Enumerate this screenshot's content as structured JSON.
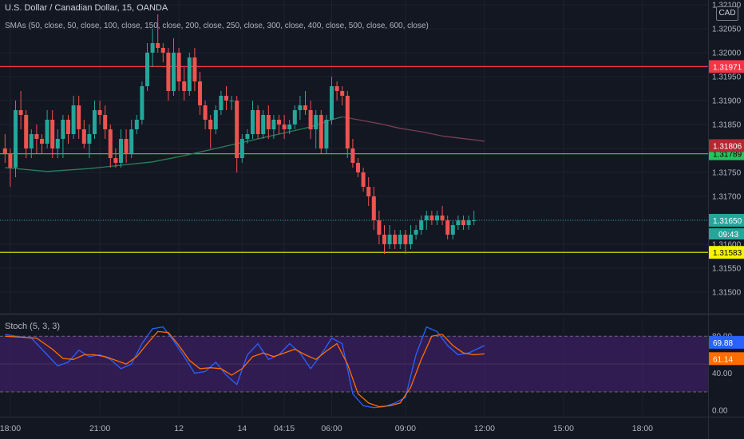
{
  "header": {
    "title": "U.S. Dollar / Canadian Dollar, 15, OANDA",
    "sma_label": "SMAs (50, close, 50, close, 100, close, 150, close, 200, close, 250, close, 300, close, 400, close, 500, close, 600, close)",
    "stoch_label": "Stoch (5, 3, 3)",
    "currency": "CAD"
  },
  "colors": {
    "background": "#131722",
    "grid": "#1e2230",
    "up": "#26a69a",
    "down": "#ef5350",
    "text": "#b2b5be",
    "sma_green": "#2e7d5a",
    "sma_maroon": "#7a3f52",
    "hline_red": "#f23645",
    "hline_green": "#22c55e",
    "hline_yellow": "#f5f500",
    "last_price_line": "#26a69a",
    "stoch_k": "#2962ff",
    "stoch_d": "#ff6d00",
    "stoch_band": "#4a2078"
  },
  "chart_data": [
    {
      "type": "candlestick",
      "title": "U.S. Dollar / Canadian Dollar, 15, OANDA",
      "ylim": [
        1.3146,
        1.3211
      ],
      "y_ticks": [
        "1.32100",
        "1.32050",
        "1.32000",
        "1.31950",
        "1.31900",
        "1.31850",
        "1.31800",
        "1.31750",
        "1.31700",
        "1.31650",
        "1.31600",
        "1.31550",
        "1.31500"
      ],
      "x_ticks": [
        "18:00",
        "21:00",
        "12",
        "14",
        "04:15",
        "06:00",
        "09:00",
        "12:00",
        "15:00",
        "18:00"
      ],
      "x_tick_index": [
        1,
        18,
        33,
        45,
        53,
        62,
        76,
        91,
        106,
        121
      ],
      "bars_in_view": 133,
      "candles": [
        [
          1.318,
          1.3183,
          1.3177,
          1.3179
        ],
        [
          1.3179,
          1.318,
          1.3172,
          1.3176
        ],
        [
          1.3176,
          1.319,
          1.3174,
          1.3188
        ],
        [
          1.3188,
          1.3192,
          1.3184,
          1.3187
        ],
        [
          1.3187,
          1.3188,
          1.3178,
          1.318
        ],
        [
          1.318,
          1.3184,
          1.3178,
          1.3183
        ],
        [
          1.3183,
          1.3185,
          1.3179,
          1.3182
        ],
        [
          1.3182,
          1.3183,
          1.3179,
          1.3181
        ],
        [
          1.3181,
          1.3188,
          1.318,
          1.3186
        ],
        [
          1.3186,
          1.3188,
          1.3178,
          1.318
        ],
        [
          1.318,
          1.3184,
          1.3178,
          1.3182
        ],
        [
          1.3182,
          1.3187,
          1.3178,
          1.3186
        ],
        [
          1.3186,
          1.3187,
          1.3181,
          1.3183
        ],
        [
          1.3183,
          1.3191,
          1.3182,
          1.3189
        ],
        [
          1.3189,
          1.3191,
          1.3182,
          1.3184
        ],
        [
          1.3184,
          1.3186,
          1.318,
          1.3181
        ],
        [
          1.3181,
          1.3185,
          1.3178,
          1.3183
        ],
        [
          1.3183,
          1.319,
          1.3182,
          1.3188
        ],
        [
          1.3188,
          1.319,
          1.3185,
          1.3187
        ],
        [
          1.3187,
          1.3189,
          1.3182,
          1.3184
        ],
        [
          1.3184,
          1.3185,
          1.3176,
          1.3178
        ],
        [
          1.3178,
          1.318,
          1.3176,
          1.3177
        ],
        [
          1.3177,
          1.3184,
          1.3176,
          1.3182
        ],
        [
          1.3182,
          1.3184,
          1.3177,
          1.3179
        ],
        [
          1.3179,
          1.3186,
          1.3178,
          1.3184
        ],
        [
          1.3184,
          1.3187,
          1.3183,
          1.3186
        ],
        [
          1.3186,
          1.3194,
          1.3185,
          1.3193
        ],
        [
          1.3193,
          1.3202,
          1.3192,
          1.32
        ],
        [
          1.32,
          1.3205,
          1.3197,
          1.3202
        ],
        [
          1.3202,
          1.3208,
          1.32,
          1.3201
        ],
        [
          1.3201,
          1.3202,
          1.3198,
          1.32
        ],
        [
          1.32,
          1.3201,
          1.319,
          1.3192
        ],
        [
          1.3192,
          1.3203,
          1.3191,
          1.32
        ],
        [
          1.32,
          1.3201,
          1.3192,
          1.3194
        ],
        [
          1.3194,
          1.3197,
          1.319,
          1.3192
        ],
        [
          1.3192,
          1.32,
          1.3191,
          1.3199
        ],
        [
          1.3199,
          1.3201,
          1.3192,
          1.3194
        ],
        [
          1.3194,
          1.3196,
          1.3187,
          1.3189
        ],
        [
          1.3189,
          1.319,
          1.3184,
          1.3186
        ],
        [
          1.3186,
          1.3187,
          1.318,
          1.3184
        ],
        [
          1.3184,
          1.3189,
          1.3183,
          1.3188
        ],
        [
          1.3188,
          1.3192,
          1.3187,
          1.3191
        ],
        [
          1.3191,
          1.3193,
          1.3188,
          1.319
        ],
        [
          1.319,
          1.3191,
          1.3188,
          1.319
        ],
        [
          1.319,
          1.3191,
          1.3175,
          1.3178
        ],
        [
          1.3178,
          1.3183,
          1.3177,
          1.3182
        ],
        [
          1.3182,
          1.3184,
          1.3181,
          1.3183
        ],
        [
          1.3183,
          1.319,
          1.3182,
          1.3188
        ],
        [
          1.3188,
          1.3189,
          1.3182,
          1.3183
        ],
        [
          1.3183,
          1.3188,
          1.3182,
          1.3187
        ],
        [
          1.3187,
          1.3189,
          1.3182,
          1.3184
        ],
        [
          1.3184,
          1.3187,
          1.3182,
          1.3186
        ],
        [
          1.3186,
          1.3187,
          1.3183,
          1.3185
        ],
        [
          1.3185,
          1.3187,
          1.3182,
          1.3184
        ],
        [
          1.3184,
          1.3186,
          1.3183,
          1.3185
        ],
        [
          1.3185,
          1.3189,
          1.3184,
          1.3188
        ],
        [
          1.3188,
          1.3191,
          1.3186,
          1.3189
        ],
        [
          1.3189,
          1.3192,
          1.3187,
          1.3188
        ],
        [
          1.3188,
          1.319,
          1.3182,
          1.3184
        ],
        [
          1.3184,
          1.3188,
          1.318,
          1.3187
        ],
        [
          1.3187,
          1.3188,
          1.3179,
          1.318
        ],
        [
          1.318,
          1.3187,
          1.3179,
          1.3186
        ],
        [
          1.3186,
          1.3195,
          1.3185,
          1.3193
        ],
        [
          1.3193,
          1.3194,
          1.319,
          1.3192
        ],
        [
          1.3192,
          1.3193,
          1.3189,
          1.3191
        ],
        [
          1.3191,
          1.3192,
          1.3178,
          1.318
        ],
        [
          1.318,
          1.3182,
          1.3176,
          1.3177
        ],
        [
          1.3177,
          1.3178,
          1.3174,
          1.3175
        ],
        [
          1.3175,
          1.3176,
          1.3171,
          1.3172
        ],
        [
          1.3172,
          1.3174,
          1.3168,
          1.317
        ],
        [
          1.317,
          1.3172,
          1.3163,
          1.3165
        ],
        [
          1.3165,
          1.3167,
          1.316,
          1.3162
        ],
        [
          1.3162,
          1.3164,
          1.3158,
          1.316
        ],
        [
          1.316,
          1.3164,
          1.3159,
          1.3162
        ],
        [
          1.3162,
          1.3163,
          1.3159,
          1.316
        ],
        [
          1.316,
          1.3163,
          1.3159,
          1.3162
        ],
        [
          1.3162,
          1.3163,
          1.3158,
          1.316
        ],
        [
          1.316,
          1.3164,
          1.3159,
          1.3162
        ],
        [
          1.3162,
          1.3164,
          1.3161,
          1.3163
        ],
        [
          1.3163,
          1.3166,
          1.3162,
          1.3165
        ],
        [
          1.3165,
          1.3167,
          1.3163,
          1.3166
        ],
        [
          1.3166,
          1.3167,
          1.3164,
          1.3165
        ],
        [
          1.3165,
          1.3167,
          1.3164,
          1.3166
        ],
        [
          1.3166,
          1.3168,
          1.3164,
          1.3165
        ],
        [
          1.3165,
          1.3166,
          1.3161,
          1.3162
        ],
        [
          1.3162,
          1.3165,
          1.3161,
          1.3164
        ],
        [
          1.3164,
          1.3166,
          1.3163,
          1.3165
        ],
        [
          1.3165,
          1.3166,
          1.3163,
          1.3164
        ],
        [
          1.3164,
          1.3166,
          1.3163,
          1.3165
        ],
        [
          1.3165,
          1.3167,
          1.3164,
          1.3165
        ]
      ],
      "sma_series": [
        {
          "values": [
            [
              0,
              1.3176
            ],
            [
              8,
              1.31752
            ],
            [
              16,
              1.31758
            ],
            [
              22,
              1.31765
            ],
            [
              28,
              1.31772
            ],
            [
              34,
              1.31785
            ],
            [
              40,
              1.318
            ],
            [
              46,
              1.31815
            ],
            [
              52,
              1.3183
            ],
            [
              58,
              1.31845
            ],
            [
              62,
              1.3186
            ],
            [
              64,
              1.31866
            ]
          ]
        },
        {
          "values": [
            [
              64,
              1.31866
            ],
            [
              67,
              1.3186
            ],
            [
              71,
              1.31852
            ],
            [
              75,
              1.31842
            ],
            [
              79,
              1.31835
            ],
            [
              83,
              1.31826
            ],
            [
              86,
              1.31822
            ],
            [
              89,
              1.31818
            ],
            [
              91,
              1.31815
            ]
          ]
        }
      ],
      "horizontal_lines": [
        {
          "value": 1.31971,
          "label": "1.31971",
          "color": "#f23645"
        },
        {
          "value": 1.31789,
          "label": "1.31789",
          "color": "#22c55e"
        },
        {
          "value": 1.31583,
          "label": "1.31583",
          "color": "#f5f500"
        }
      ],
      "markers": [
        {
          "value": 1.31806,
          "label": "1.31806",
          "color": "#ffffff",
          "bg": "#b22833"
        },
        {
          "value": 1.3165,
          "label": "1.31650",
          "color": "#ffffff",
          "bg": "#26a69a",
          "last_price": true,
          "sub_label": "09:43"
        }
      ]
    },
    {
      "type": "line",
      "title": "Stoch (5, 3, 3)",
      "ylim": [
        -5,
        100
      ],
      "y_ticks": [
        "80.00",
        "40.00",
        "0.00"
      ],
      "y_tick_values": [
        80,
        40,
        0
      ],
      "band": [
        20,
        80
      ],
      "bars_in_view": 133,
      "series": [
        {
          "name": "%K",
          "color": "#2962ff",
          "values": [
            [
              0,
              82
            ],
            [
              2,
              80
            ],
            [
              5,
              78
            ],
            [
              8,
              60
            ],
            [
              10,
              48
            ],
            [
              12,
              52
            ],
            [
              14,
              65
            ],
            [
              16,
              58
            ],
            [
              18,
              60
            ],
            [
              20,
              55
            ],
            [
              22,
              45
            ],
            [
              24,
              50
            ],
            [
              26,
              72
            ],
            [
              28,
              88
            ],
            [
              30,
              90
            ],
            [
              32,
              75
            ],
            [
              34,
              58
            ],
            [
              36,
              40
            ],
            [
              38,
              42
            ],
            [
              40,
              52
            ],
            [
              42,
              38
            ],
            [
              44,
              28
            ],
            [
              46,
              60
            ],
            [
              48,
              72
            ],
            [
              50,
              55
            ],
            [
              52,
              60
            ],
            [
              54,
              72
            ],
            [
              56,
              62
            ],
            [
              58,
              45
            ],
            [
              60,
              60
            ],
            [
              62,
              78
            ],
            [
              64,
              72
            ],
            [
              66,
              18
            ],
            [
              68,
              5
            ],
            [
              70,
              3
            ],
            [
              72,
              4
            ],
            [
              74,
              8
            ],
            [
              76,
              14
            ],
            [
              78,
              60
            ],
            [
              80,
              90
            ],
            [
              82,
              85
            ],
            [
              84,
              70
            ],
            [
              86,
              60
            ],
            [
              88,
              62
            ],
            [
              91,
              70
            ]
          ]
        },
        {
          "name": "%D",
          "color": "#ff6d00",
          "values": [
            [
              0,
              80
            ],
            [
              3,
              79
            ],
            [
              6,
              78
            ],
            [
              9,
              66
            ],
            [
              11,
              56
            ],
            [
              13,
              55
            ],
            [
              15,
              60
            ],
            [
              17,
              60
            ],
            [
              19,
              58
            ],
            [
              21,
              54
            ],
            [
              23,
              50
            ],
            [
              25,
              58
            ],
            [
              27,
              72
            ],
            [
              29,
              85
            ],
            [
              31,
              84
            ],
            [
              33,
              70
            ],
            [
              35,
              54
            ],
            [
              37,
              45
            ],
            [
              39,
              46
            ],
            [
              41,
              45
            ],
            [
              43,
              38
            ],
            [
              45,
              45
            ],
            [
              47,
              58
            ],
            [
              49,
              62
            ],
            [
              51,
              58
            ],
            [
              53,
              62
            ],
            [
              55,
              66
            ],
            [
              57,
              60
            ],
            [
              59,
              55
            ],
            [
              61,
              64
            ],
            [
              63,
              72
            ],
            [
              65,
              50
            ],
            [
              67,
              18
            ],
            [
              69,
              8
            ],
            [
              71,
              4
            ],
            [
              73,
              5
            ],
            [
              75,
              8
            ],
            [
              77,
              25
            ],
            [
              79,
              55
            ],
            [
              81,
              80
            ],
            [
              83,
              82
            ],
            [
              85,
              70
            ],
            [
              87,
              62
            ],
            [
              89,
              60
            ],
            [
              91,
              61
            ]
          ]
        }
      ],
      "last_labels": [
        {
          "label": "69.88",
          "bg": "#2962ff"
        },
        {
          "label": "61.14",
          "bg": "#ff6d00"
        }
      ]
    }
  ]
}
